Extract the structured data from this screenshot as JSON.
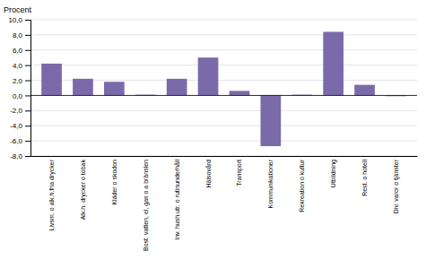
{
  "chart_data": {
    "type": "bar",
    "ylabel": "Procent",
    "categories": [
      "Livsm. o alk.h.fria drycker",
      "Alk.h. drycker o tobak",
      "Kläder o skodon",
      "Bost. vatten, el, gas o a bränslen",
      "Inv. hush.utr. o rutinunderhåll",
      "Hälsovård",
      "Transport",
      "Kommunikationer",
      "Rekreation o kultur",
      "Utbildning",
      "Rest. o hotell",
      "Div. varor o tjänster"
    ],
    "values": [
      4.2,
      2.2,
      1.8,
      0.1,
      2.2,
      5.0,
      0.6,
      -6.7,
      0.1,
      8.4,
      1.4,
      -0.1
    ],
    "color": "#7b6aaa",
    "ylim": [
      -8.0,
      10.0
    ],
    "yticks": [
      {
        "value": -8.0,
        "label": "-8,0"
      },
      {
        "value": -6.0,
        "label": "-6,0"
      },
      {
        "value": -4.0,
        "label": "-4,0"
      },
      {
        "value": -2.0,
        "label": "-2,0"
      },
      {
        "value": 0.0,
        "label": "0,0"
      },
      {
        "value": 2.0,
        "label": "2,0"
      },
      {
        "value": 4.0,
        "label": "4,0"
      },
      {
        "value": 6.0,
        "label": "6,0"
      },
      {
        "value": 8.0,
        "label": "8,0"
      },
      {
        "value": 10.0,
        "label": "10,0"
      }
    ],
    "grid": true
  }
}
